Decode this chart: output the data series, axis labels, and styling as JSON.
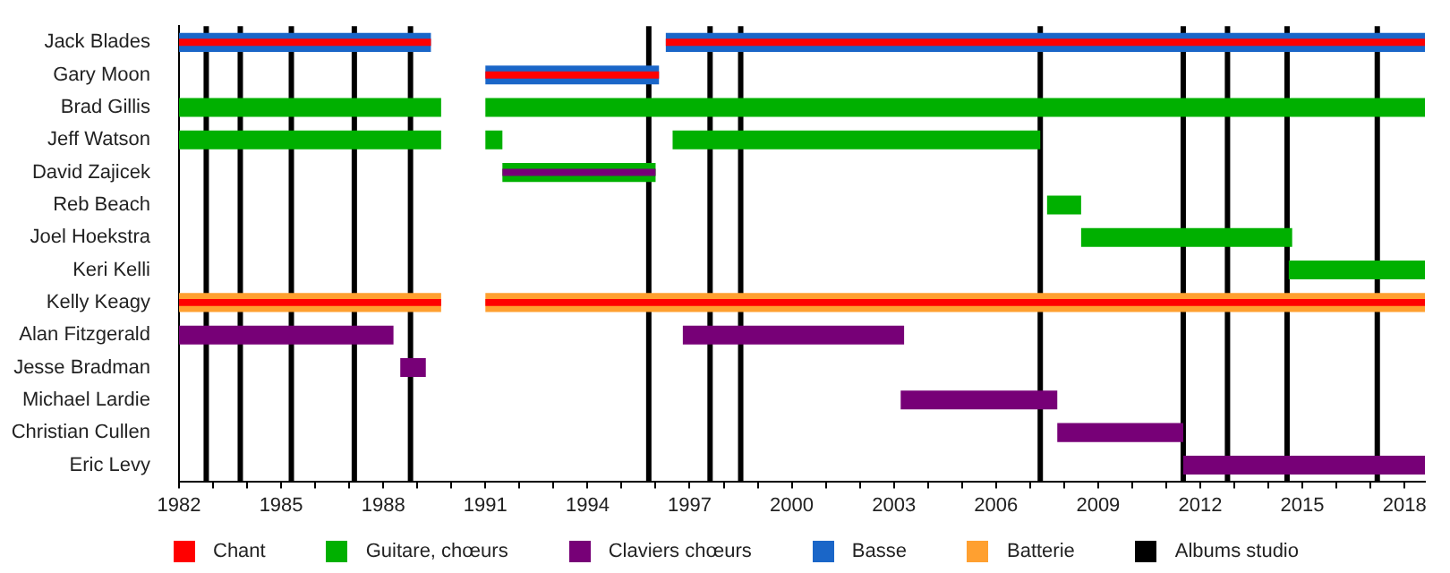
{
  "chart_data": {
    "type": "bar",
    "orientation": "horizontal",
    "legend": "bottom",
    "categories": [
      "Jack Blades",
      "Gary Moon",
      "Brad Gillis",
      "Jeff Watson",
      "David Zajicek",
      "Reb Beach",
      "Joel Hoekstra",
      "Keri Kelli",
      "Kelly Keagy",
      "Alan Fitzgerald",
      "Jesse Bradman",
      "Michael Lardie",
      "Christian Cullen",
      "Eric Levy"
    ],
    "xlim": [
      1982,
      2018.6
    ],
    "xticks": [
      1982,
      {
        "value": 1983,
        "label": null
      },
      {
        "value": 1984,
        "label": null
      },
      1985,
      {
        "value": 1986,
        "label": null
      },
      {
        "value": 1987,
        "label": null
      },
      1988,
      {
        "value": 1989,
        "label": null
      },
      {
        "value": 1990,
        "label": null
      },
      1991,
      {
        "value": 1992,
        "label": null
      },
      {
        "value": 1993,
        "label": null
      },
      1994,
      {
        "value": 1995,
        "label": null
      },
      {
        "value": 1996,
        "label": null
      },
      1997,
      {
        "value": 1998,
        "label": null
      },
      {
        "value": 1999,
        "label": null
      },
      2000,
      {
        "value": 2001,
        "label": null
      },
      {
        "value": 2002,
        "label": null
      },
      2003,
      {
        "value": 2004,
        "label": null
      },
      {
        "value": 2005,
        "label": null
      },
      2006,
      {
        "value": 2007,
        "label": null
      },
      {
        "value": 2008,
        "label": null
      },
      2009,
      {
        "value": 2010,
        "label": null
      },
      {
        "value": 2011,
        "label": null
      },
      2012,
      {
        "value": 2013,
        "label": null
      },
      {
        "value": 2014,
        "label": null
      },
      2015,
      {
        "value": 2016,
        "label": null
      },
      {
        "value": 2017,
        "label": null
      },
      2018
    ],
    "series": [
      {
        "name": "Chant",
        "color": "#ff0000",
        "base": [
          1982,
          1991,
          null,
          null,
          null,
          null,
          null,
          null,
          1982,
          null,
          null,
          null,
          null,
          null
        ],
        "values": [
          7.4,
          5.1,
          null,
          null,
          null,
          null,
          null,
          null,
          7.7,
          null,
          null,
          null,
          null,
          null
        ]
      },
      {
        "name": "Guitare, chœurs",
        "color": "#00b000",
        "base": [
          null,
          null,
          1982,
          1982,
          null,
          2007.5,
          2008.5,
          2014.6,
          null,
          null,
          null,
          null,
          null,
          null
        ],
        "values": [
          null,
          null,
          7.7,
          7.7,
          null,
          1.0,
          6.2,
          4.0,
          null,
          null,
          null,
          null,
          null,
          null
        ]
      },
      {
        "name": "Claviers chœurs",
        "color": "#770077",
        "base": [
          null,
          null,
          null,
          null,
          1991.5,
          null,
          null,
          null,
          null,
          1982,
          1988.5,
          2003.2,
          2007.8,
          2011.5
        ],
        "values": [
          null,
          null,
          null,
          null,
          4.5,
          null,
          null,
          null,
          null,
          6.3,
          0.75,
          4.6,
          3.7,
          7.1
        ]
      },
      {
        "name": "Basse",
        "color": "#1a66c8",
        "base": [
          1982,
          1991,
          null,
          null,
          null,
          null,
          null,
          null,
          null,
          null,
          null,
          null,
          null,
          null
        ],
        "values": [
          7.4,
          5.1,
          null,
          null,
          null,
          null,
          null,
          null,
          null,
          null,
          null,
          null,
          null,
          null
        ]
      },
      {
        "name": "Batterie",
        "color": "#ffa030",
        "base": [
          null,
          null,
          null,
          null,
          null,
          null,
          null,
          null,
          1982,
          null,
          null,
          null,
          null,
          null
        ],
        "values": [
          null,
          null,
          null,
          null,
          null,
          null,
          null,
          null,
          7.7,
          null,
          null,
          null,
          null,
          null
        ]
      },
      {
        "color": "#ff0000",
        "base": [
          1996.3,
          null,
          null,
          null,
          null,
          null,
          null,
          null,
          1991,
          null,
          null,
          null,
          null,
          null
        ],
        "values": [
          22.3,
          null,
          null,
          null,
          null,
          null,
          null,
          null,
          27.6,
          null,
          null,
          null,
          null,
          null
        ]
      },
      {
        "color": "#00b000",
        "base": [
          null,
          null,
          1991,
          1991,
          1991.5,
          null,
          null,
          null,
          null,
          null,
          null,
          null,
          null,
          null
        ],
        "values": [
          null,
          null,
          27.6,
          0.5,
          4.5,
          null,
          null,
          null,
          null,
          null,
          null,
          null,
          null,
          null
        ]
      },
      {
        "color": "#00b000",
        "base": [
          null,
          null,
          null,
          1996.5,
          null,
          null,
          null,
          null,
          null,
          null,
          null,
          null,
          null,
          null
        ],
        "values": [
          null,
          null,
          null,
          10.8,
          null,
          null,
          null,
          null,
          null,
          null,
          null,
          null,
          null,
          null
        ]
      },
      {
        "color": "#770077",
        "base": [
          null,
          null,
          null,
          null,
          null,
          null,
          null,
          null,
          null,
          1996.8,
          null,
          null,
          null,
          null
        ],
        "values": [
          null,
          null,
          null,
          null,
          null,
          null,
          null,
          null,
          null,
          6.5,
          null,
          null,
          null,
          null
        ]
      },
      {
        "color": "#1a66c8",
        "base": [
          1996.3,
          null,
          null,
          null,
          null,
          null,
          null,
          null,
          null,
          null,
          null,
          null,
          null,
          null
        ],
        "values": [
          22.3,
          null,
          null,
          null,
          null,
          null,
          null,
          null,
          null,
          null,
          null,
          null,
          null,
          null
        ]
      },
      {
        "color": "#ffa030",
        "base": [
          null,
          null,
          null,
          null,
          null,
          null,
          null,
          null,
          1991,
          null,
          null,
          null,
          null,
          null
        ],
        "values": [
          null,
          null,
          null,
          null,
          null,
          null,
          null,
          null,
          27.6,
          null,
          null,
          null,
          null,
          null
        ]
      }
    ],
    "ref_lines": [
      {
        "axis": "x",
        "value": 1982.8,
        "color": "#000000"
      },
      {
        "axis": "x",
        "value": 1983.8,
        "color": "#000000"
      },
      {
        "axis": "x",
        "value": 1985.3,
        "color": "#000000"
      },
      {
        "axis": "x",
        "value": 1987.15,
        "color": "#000000"
      },
      {
        "axis": "x",
        "value": 1988.8,
        "color": "#000000"
      },
      {
        "axis": "x",
        "value": 1995.8,
        "color": "#000000"
      },
      {
        "axis": "x",
        "value": 1997.6,
        "color": "#000000"
      },
      {
        "axis": "x",
        "value": 1998.5,
        "color": "#000000"
      },
      {
        "axis": "x",
        "value": 2007.3,
        "color": "#000000"
      },
      {
        "axis": "x",
        "value": 2011.5,
        "color": "#000000"
      },
      {
        "axis": "x",
        "value": 2012.8,
        "color": "#000000"
      },
      {
        "axis": "x",
        "value": 2014.55,
        "color": "#000000"
      },
      {
        "axis": "x",
        "value": 2017.2,
        "color": "#000000"
      }
    ],
    "annotations": [
      "Albums studio"
    ]
  }
}
